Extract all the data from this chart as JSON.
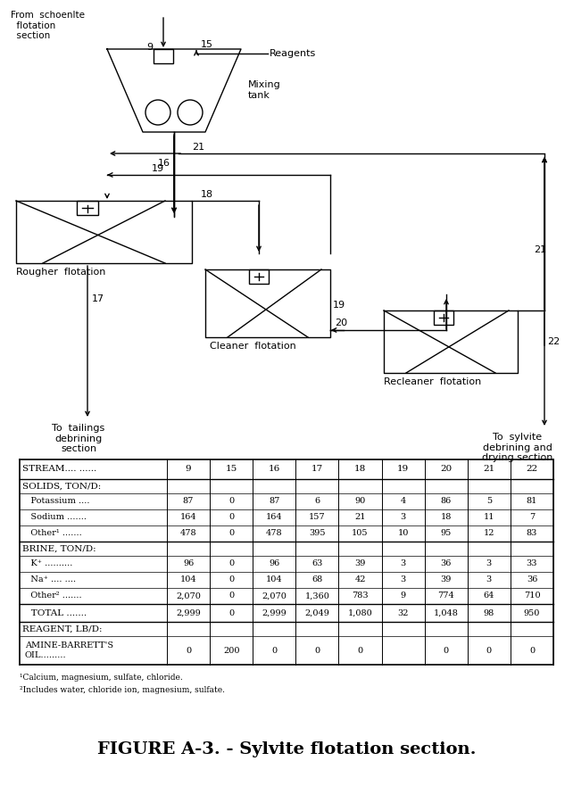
{
  "title": "FIGURE A-3. - Sylvite flotation section.",
  "bg_color": "#ffffff",
  "streams": [
    "9",
    "15",
    "16",
    "17",
    "18",
    "19",
    "20",
    "21",
    "22"
  ],
  "table_rows": {
    "stream_header": [
      "9",
      "15",
      "16",
      "17",
      "18",
      "19",
      "20",
      "21",
      "22"
    ],
    "potassium": [
      "87",
      "0",
      "87",
      "6",
      "90",
      "4",
      "86",
      "5",
      "81"
    ],
    "sodium": [
      "164",
      "0",
      "164",
      "157",
      "21",
      "3",
      "18",
      "11",
      "7"
    ],
    "other1": [
      "478",
      "0",
      "478",
      "395",
      "105",
      "10",
      "95",
      "12",
      "83"
    ],
    "kplus": [
      "96",
      "0",
      "96",
      "63",
      "39",
      "3",
      "36",
      "3",
      "33"
    ],
    "naplus": [
      "104",
      "0",
      "104",
      "68",
      "42",
      "3",
      "39",
      "3",
      "36"
    ],
    "other2": [
      "2,070",
      "0",
      "2,070",
      "1,360",
      "783",
      "9",
      "774",
      "64",
      "710"
    ],
    "total": [
      "2,999",
      "0",
      "2,999",
      "2,049",
      "1,080",
      "32",
      "1,048",
      "98",
      "950"
    ],
    "amine": [
      "0",
      "200",
      "0",
      "0",
      "0",
      "",
      "0",
      "0",
      "0"
    ]
  },
  "footnote1": "¹Calcium, magnesium, sulfate, chloride.",
  "footnote2": "²Includes water, chloride ion, magnesium, sulfate."
}
